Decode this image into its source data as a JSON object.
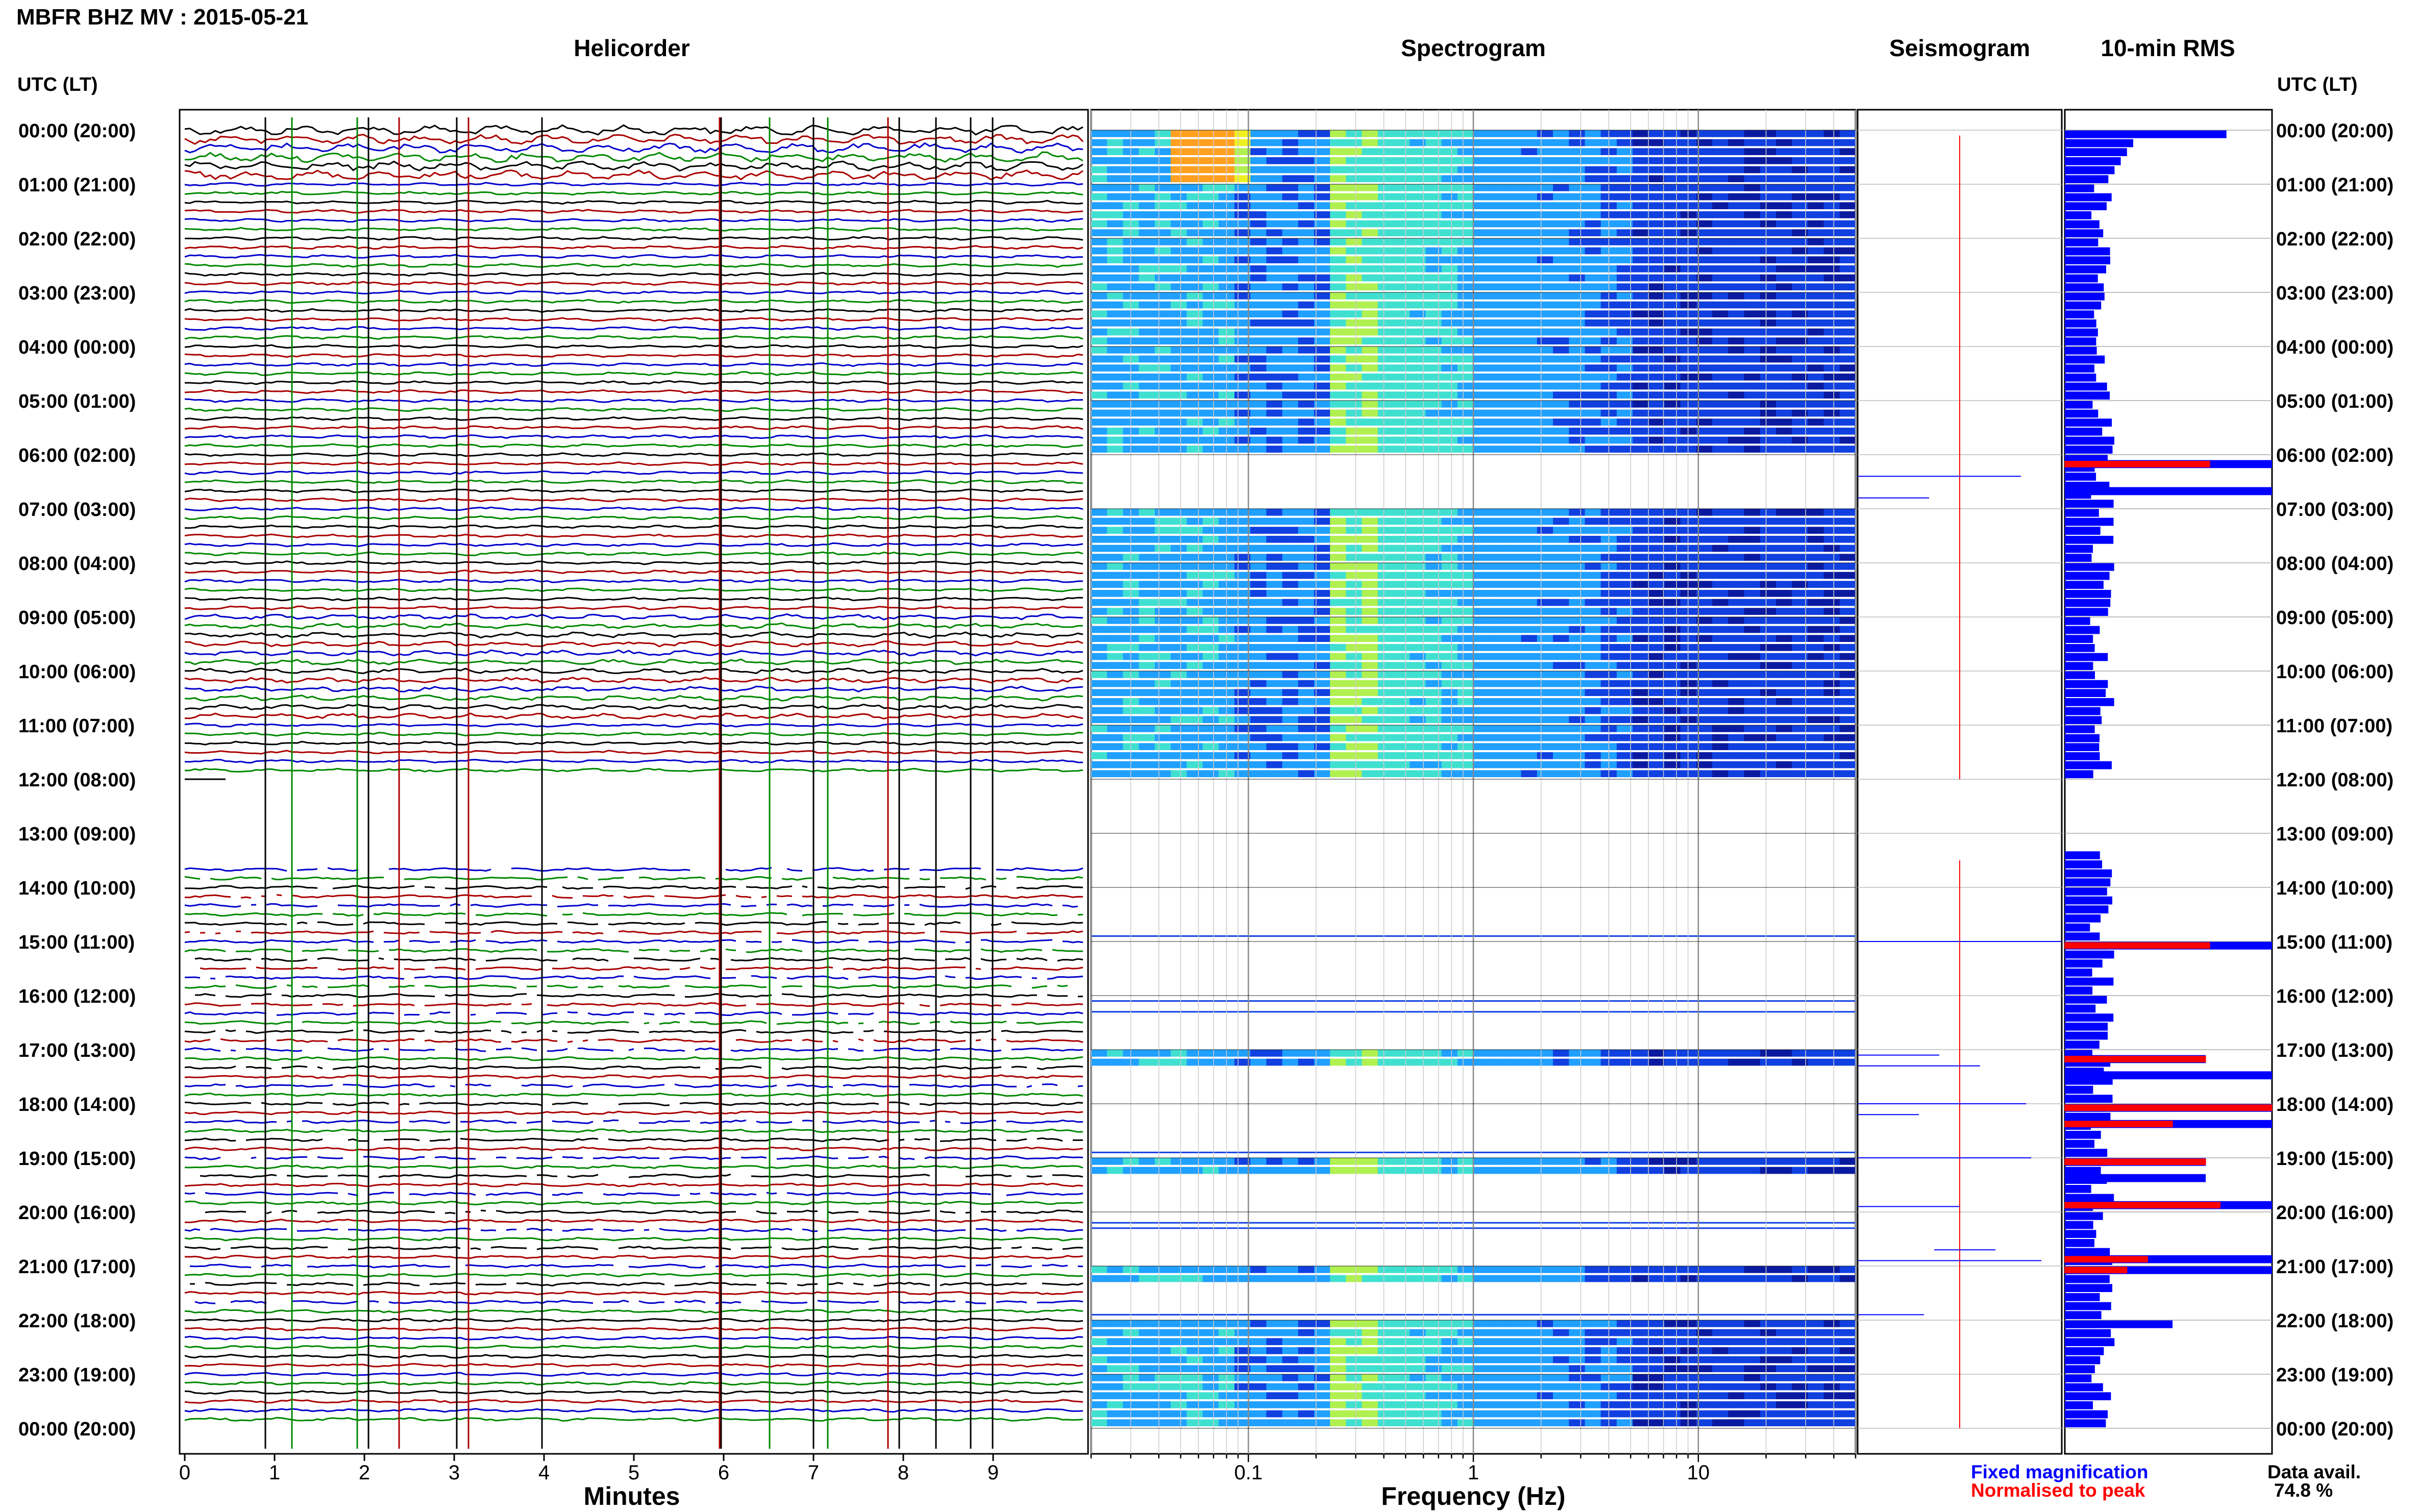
{
  "page": {
    "station_title": "MBFR BHZ MV : 2015-05-21",
    "utc_header_left": "UTC (LT)",
    "utc_header_right": "UTC (LT)",
    "panel_titles": {
      "helicorder": "Helicorder",
      "spectrogram": "Spectrogram",
      "seismogram": "Seismogram",
      "rms": "10-min RMS"
    },
    "x_labels": {
      "helicorder": "Minutes",
      "spectrogram": "Frequency (Hz)"
    },
    "legend": {
      "fixed": "Fixed magnification",
      "normalised": "Normalised to peak",
      "fixed_color": "#0000ff",
      "normalised_color": "#ff0000"
    },
    "data_avail": {
      "label": "Data avail.",
      "value": "74.8 %"
    }
  },
  "chart_data": {
    "type": "heatmap",
    "hour_labels": [
      "00:00 (20:00)",
      "01:00 (21:00)",
      "02:00 (22:00)",
      "03:00 (23:00)",
      "04:00 (00:00)",
      "05:00 (01:00)",
      "06:00 (02:00)",
      "07:00 (03:00)",
      "08:00 (04:00)",
      "09:00 (05:00)",
      "10:00 (06:00)",
      "11:00 (07:00)",
      "12:00 (08:00)",
      "13:00 (09:00)",
      "14:00 (10:00)",
      "15:00 (11:00)",
      "16:00 (12:00)",
      "17:00 (13:00)",
      "18:00 (14:00)",
      "19:00 (15:00)",
      "20:00 (16:00)",
      "21:00 (17:00)",
      "22:00 (18:00)",
      "23:00 (19:00)",
      "00:00 (20:00)"
    ],
    "helicorder": {
      "x_ticks": [
        "0",
        "1",
        "2",
        "3",
        "4",
        "5",
        "6",
        "7",
        "8",
        "9"
      ],
      "x_range_minutes": [
        0,
        10
      ],
      "trace_colors": [
        "#000000",
        "#aa0000",
        "#0000cc",
        "#008800"
      ],
      "traces_per_hour": 6,
      "gap_hours": [
        12,
        13
      ]
    },
    "spectrogram": {
      "x_scale": "log",
      "x_range_hz": [
        0.02,
        50
      ],
      "x_ticks": [
        "0.1",
        "1",
        "10"
      ],
      "x_tick_values": [
        0.1,
        1,
        10
      ],
      "colormap": [
        "#0a1aa0",
        "#1040e0",
        "#20a0ff",
        "#40e0d0",
        "#b0f050",
        "#f0f020",
        "#ffa020"
      ]
    },
    "rms": {
      "bins_per_hour": 6,
      "x_max": 1
    }
  }
}
